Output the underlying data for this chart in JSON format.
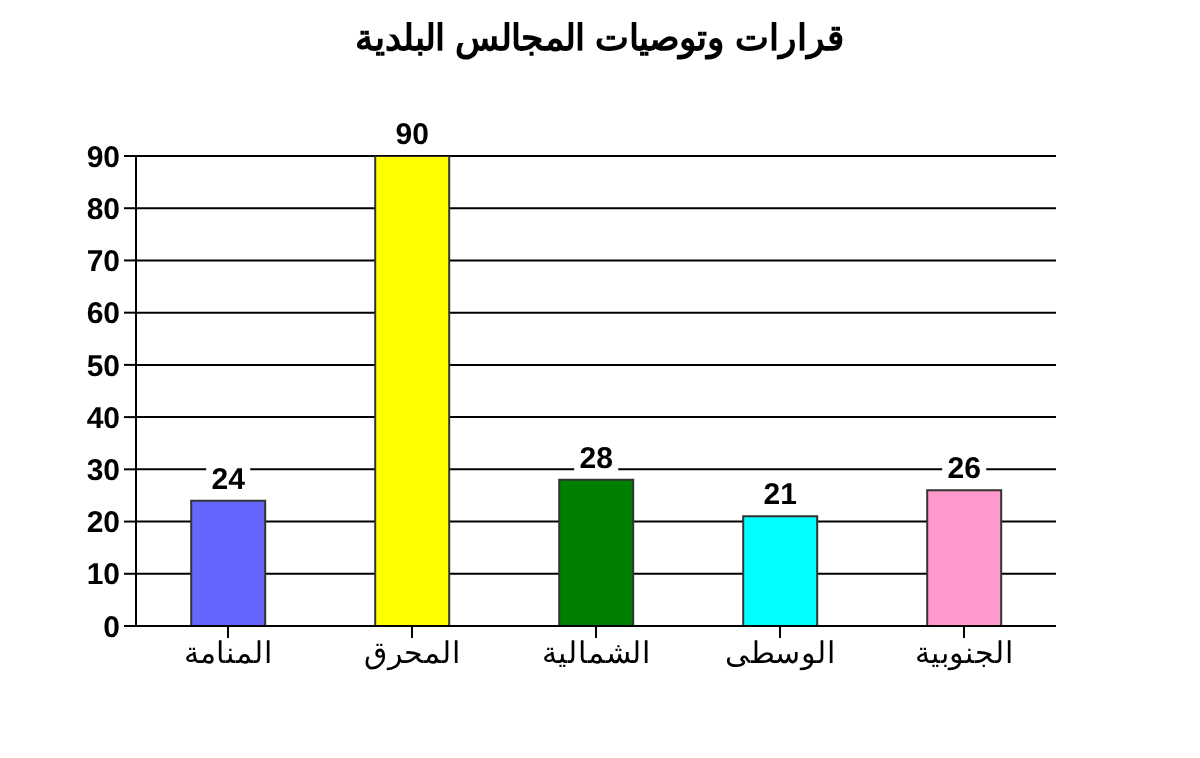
{
  "chart_data": {
    "type": "bar",
    "title": "قرارات وتوصيات المجالس البلدية",
    "categories": [
      "المنامة",
      "المحرق",
      "الشمالية",
      "الوسطى",
      "الجنوبية"
    ],
    "values": [
      24,
      90,
      28,
      21,
      26
    ],
    "colors": [
      "#6666ff",
      "#ffff00",
      "#008000",
      "#00ffff",
      "#ff99cc"
    ],
    "ylim": [
      0,
      90
    ],
    "yticks": [
      0,
      10,
      20,
      30,
      40,
      50,
      60,
      70,
      80,
      90
    ],
    "grid": "y",
    "data_labels": true
  }
}
